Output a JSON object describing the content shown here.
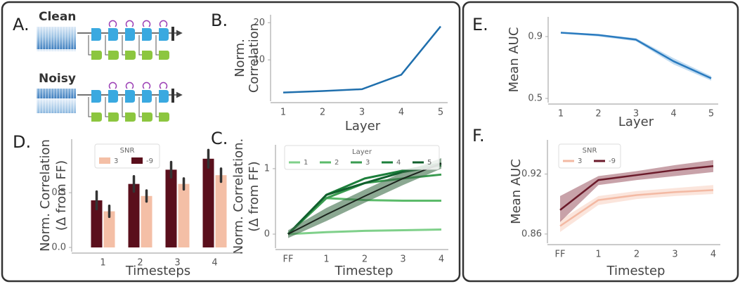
{
  "diagram": {
    "label": "A.",
    "rows": [
      {
        "label": "Clean"
      },
      {
        "label": "Noisy"
      }
    ]
  },
  "chart_data": [
    {
      "type": "line",
      "label": "B.",
      "ylabel": [
        "Norm.",
        "Correlation"
      ],
      "xlabel": "Layer",
      "categories": [
        "1",
        "2",
        "3",
        "4",
        "5"
      ],
      "series": [
        {
          "color": "#1f6fad",
          "values": [
            1.2,
            1.6,
            2.1,
            6.0,
            19.0
          ]
        }
      ],
      "ylim": [
        0,
        21
      ],
      "yticks": [
        10,
        20
      ]
    },
    {
      "type": "line",
      "label": "C.",
      "ylabel": [
        "Norm. Correlation.",
        "(Δ from FF)"
      ],
      "xlabel": "Timestep",
      "categories": [
        "FF",
        "1",
        "2",
        "3",
        "4"
      ],
      "legend_title": "Layer",
      "series": [
        {
          "name": "1",
          "color": "#7fd08a",
          "values": [
            0,
            0.03,
            0.05,
            0.06,
            0.07
          ]
        },
        {
          "name": "2",
          "color": "#5bbb6a",
          "values": [
            0,
            0.55,
            0.52,
            0.51,
            0.51
          ]
        },
        {
          "name": "3",
          "color": "#3a9b50",
          "values": [
            0,
            0.55,
            0.78,
            0.85,
            0.91
          ]
        },
        {
          "name": "4",
          "color": "#1c7f3b",
          "values": [
            0,
            0.6,
            0.85,
            0.97,
            1.08
          ]
        },
        {
          "name": "5",
          "color": "#11602e",
          "values": [
            0,
            0.6,
            0.78,
            0.95,
            1.05
          ]
        }
      ],
      "trend": {
        "color": "#1b241d",
        "band_color": "#3d6e4a",
        "values": [
          0,
          0.3,
          0.58,
          0.85,
          1.08
        ],
        "lower": [
          -0.06,
          0.2,
          0.48,
          0.75,
          1.0
        ],
        "upper": [
          0.06,
          0.4,
          0.68,
          0.95,
          1.16
        ]
      },
      "ylim": [
        -0.15,
        1.3
      ],
      "yticks": [
        0,
        1
      ]
    },
    {
      "type": "bar",
      "label": "D.",
      "ylabel": [
        "Norm. Correlation",
        "(Δ from FF)"
      ],
      "xlabel": "Timesteps",
      "categories": [
        "1",
        "2",
        "3",
        "4"
      ],
      "legend_title": "SNR",
      "series": [
        {
          "name": "3",
          "color": "#f4bfa6",
          "values": [
            0.33,
            0.47,
            0.58,
            0.66
          ],
          "error": [
            0.05,
            0.05,
            0.05,
            0.06
          ]
        },
        {
          "name": "-9",
          "color": "#5a0f1c",
          "values": [
            0.43,
            0.58,
            0.71,
            0.81
          ],
          "error": [
            0.08,
            0.07,
            0.07,
            0.08
          ]
        }
      ],
      "ylim": [
        0,
        0.95
      ],
      "yticks": [
        {
          "value": 0,
          "label": "0.0"
        },
        0.5
      ]
    },
    {
      "type": "line",
      "label": "E.",
      "ylabel": [
        "Mean AUC"
      ],
      "xlabel": "Layer",
      "categories": [
        "1",
        "2",
        "3",
        "4",
        "5"
      ],
      "series": [
        {
          "color": "#2a7bbf",
          "band_color": "#8fbfe6",
          "values": [
            0.925,
            0.91,
            0.88,
            0.74,
            0.63
          ],
          "lower": [
            0.92,
            0.9,
            0.87,
            0.72,
            0.615
          ],
          "upper": [
            0.93,
            0.915,
            0.89,
            0.76,
            0.645
          ]
        }
      ],
      "ylim": [
        0.5,
        1.0
      ],
      "yticks": [
        0.5,
        0.9
      ]
    },
    {
      "type": "line",
      "label": "F.",
      "ylabel": [
        "Mean AUC"
      ],
      "xlabel": "Timestep",
      "categories": [
        "FF",
        "1",
        "2",
        "3",
        "4"
      ],
      "legend_title": "SNR",
      "series": [
        {
          "name": "3",
          "color": "#f3b9a3",
          "band_color": "#f8cfbf",
          "values": [
            0.868,
            0.894,
            0.899,
            0.902,
            0.904
          ],
          "lower": [
            0.862,
            0.889,
            0.895,
            0.898,
            0.9
          ],
          "upper": [
            0.874,
            0.898,
            0.903,
            0.906,
            0.909
          ]
        },
        {
          "name": "-9",
          "color": "#6b1a2a",
          "band_color": "#9a5562",
          "values": [
            0.884,
            0.914,
            0.919,
            0.924,
            0.928
          ],
          "lower": [
            0.872,
            0.909,
            0.914,
            0.918,
            0.922
          ],
          "upper": [
            0.898,
            0.918,
            0.923,
            0.929,
            0.934
          ]
        }
      ],
      "ylim": [
        0.855,
        0.95
      ],
      "yticks": [
        0.86,
        0.92
      ]
    }
  ]
}
